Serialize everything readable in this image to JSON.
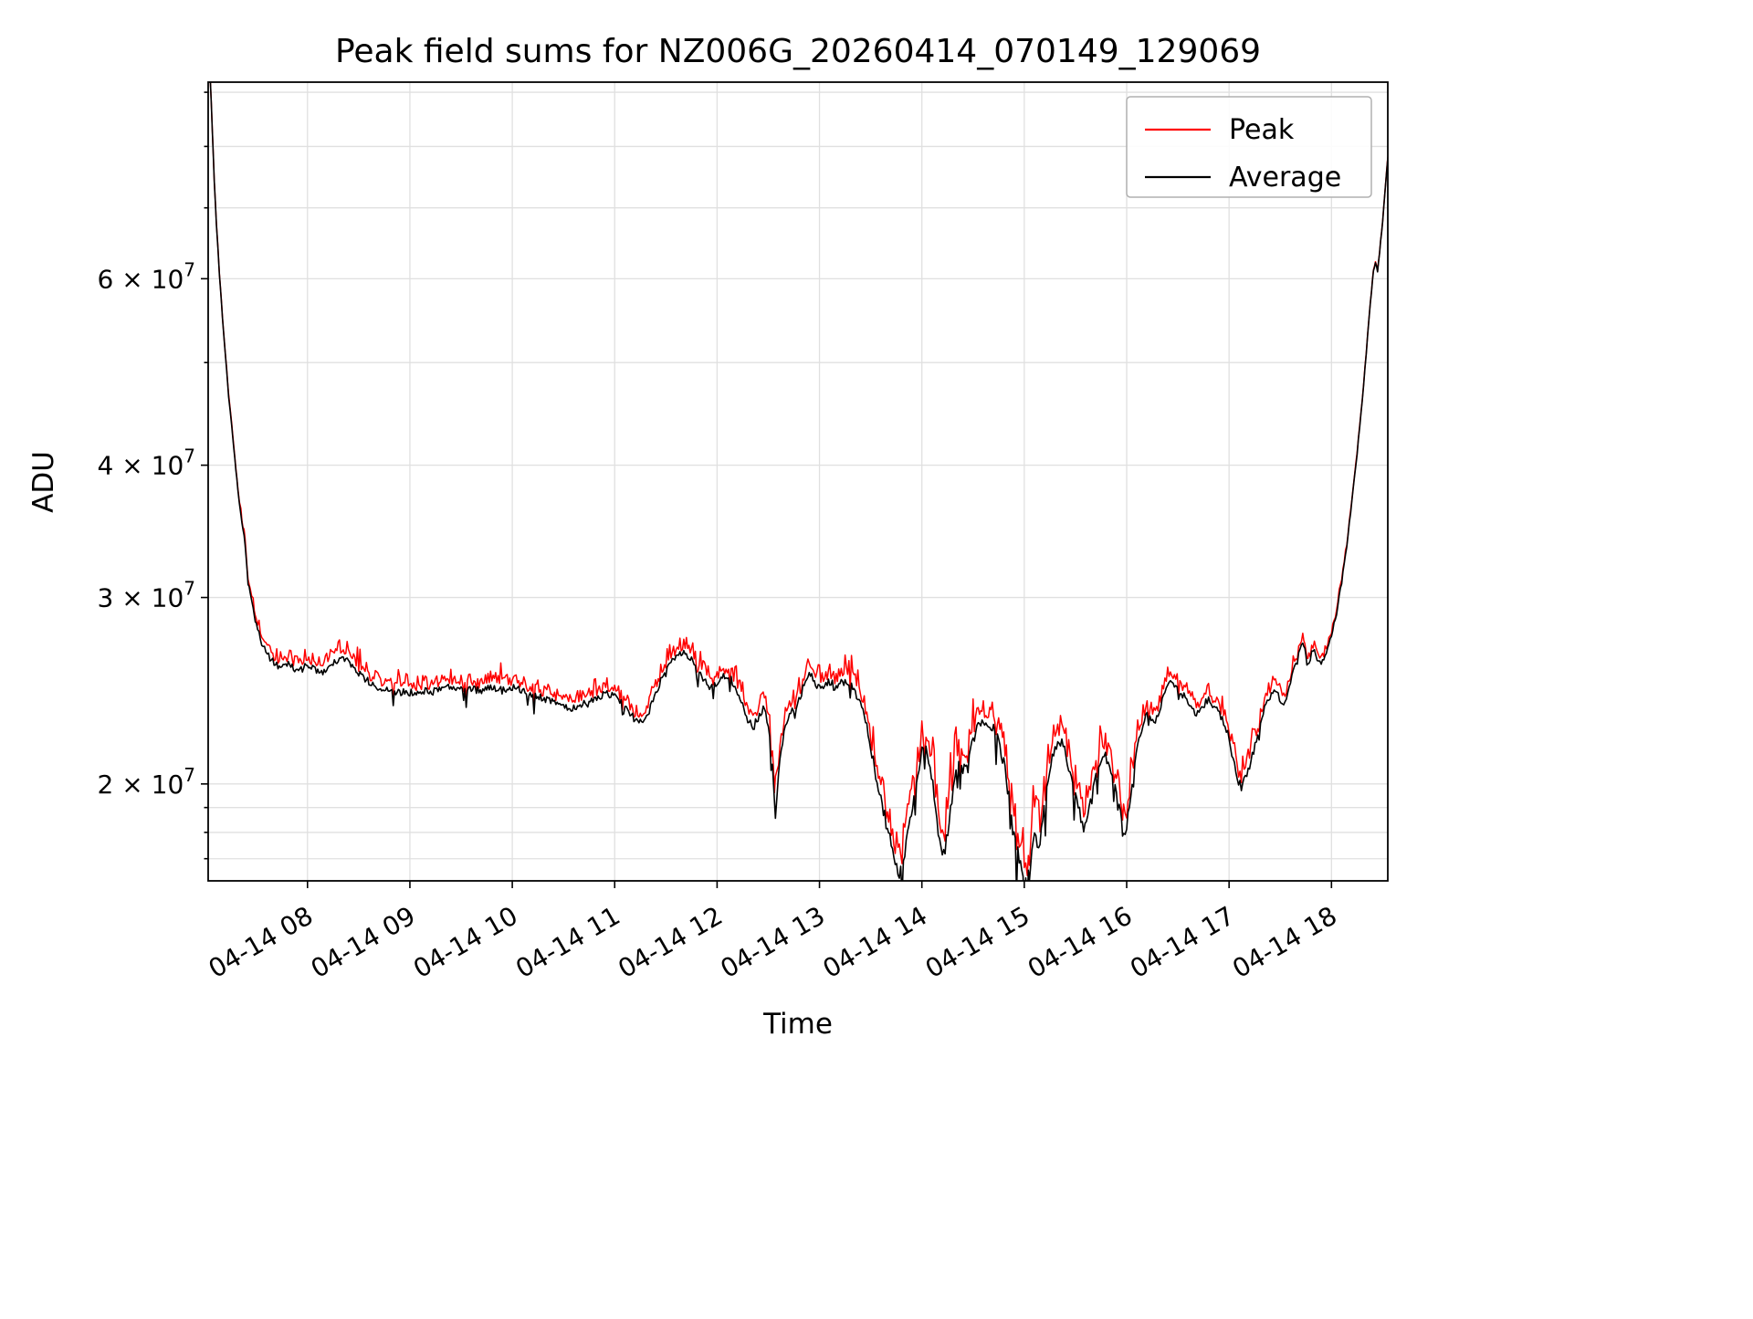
{
  "chart_data": {
    "type": "line",
    "title": "Peak field sums for NZ006G_20260414_070149_129069",
    "xlabel": "Time",
    "ylabel": "ADU",
    "yscale": "log",
    "grid": true,
    "legend_position": "upper right",
    "value_unit": 10000000,
    "ylim": [
      16200000,
      92000000
    ],
    "xlim_hours": [
      7.03,
      18.55
    ],
    "x_ticks": [
      {
        "hour": 8,
        "label": "04-14 08"
      },
      {
        "hour": 9,
        "label": "04-14 09"
      },
      {
        "hour": 10,
        "label": "04-14 10"
      },
      {
        "hour": 11,
        "label": "04-14 11"
      },
      {
        "hour": 12,
        "label": "04-14 12"
      },
      {
        "hour": 13,
        "label": "04-14 13"
      },
      {
        "hour": 14,
        "label": "04-14 14"
      },
      {
        "hour": 15,
        "label": "04-14 15"
      },
      {
        "hour": 16,
        "label": "04-14 16"
      },
      {
        "hour": 17,
        "label": "04-14 17"
      },
      {
        "hour": 18,
        "label": "04-14 18"
      }
    ],
    "y_ticks": [
      {
        "value": 20000000,
        "label": "2 × 10^7"
      },
      {
        "value": 30000000,
        "label": "3 × 10^7"
      },
      {
        "value": 40000000,
        "label": "4 × 10^7"
      },
      {
        "value": 60000000,
        "label": "6 × 10^7"
      }
    ],
    "y_minor": [
      17000000,
      18000000,
      19000000,
      50000000,
      70000000,
      80000000,
      90000000
    ],
    "texture": {
      "seed": 129069,
      "substep_hours": 0.012
    },
    "x_hours": [
      7.05,
      7.07,
      7.09,
      7.11,
      7.14,
      7.17,
      7.2,
      7.23,
      7.26,
      7.29,
      7.32,
      7.35,
      7.37,
      7.39,
      7.41,
      7.44,
      7.47,
      7.5,
      7.54,
      7.58,
      7.62,
      7.66,
      7.7,
      7.75,
      7.8,
      7.85,
      7.9,
      7.95,
      8.0,
      8.05,
      8.1,
      8.15,
      8.2,
      8.25,
      8.3,
      8.35,
      8.4,
      8.45,
      8.5,
      8.55,
      8.6,
      8.65,
      8.7,
      8.75,
      8.8,
      8.85,
      8.9,
      8.95,
      9.0,
      9.05,
      9.1,
      9.15,
      9.2,
      9.25,
      9.3,
      9.35,
      9.4,
      9.45,
      9.5,
      9.55,
      9.6,
      9.65,
      9.7,
      9.75,
      9.8,
      9.85,
      9.9,
      9.95,
      10.0,
      10.05,
      10.1,
      10.15,
      10.2,
      10.25,
      10.3,
      10.35,
      10.4,
      10.45,
      10.5,
      10.55,
      10.6,
      10.65,
      10.7,
      10.75,
      10.8,
      10.85,
      10.9,
      10.95,
      11.0,
      11.05,
      11.1,
      11.15,
      11.2,
      11.25,
      11.3,
      11.35,
      11.4,
      11.45,
      11.5,
      11.55,
      11.6,
      11.65,
      11.7,
      11.75,
      11.8,
      11.85,
      11.9,
      11.95,
      12.0,
      12.05,
      12.1,
      12.15,
      12.2,
      12.25,
      12.3,
      12.35,
      12.4,
      12.45,
      12.5,
      12.54,
      12.57,
      12.6,
      12.64,
      12.68,
      12.72,
      12.76,
      12.8,
      12.85,
      12.9,
      12.95,
      13.0,
      13.05,
      13.1,
      13.15,
      13.2,
      13.25,
      13.3,
      13.35,
      13.4,
      13.45,
      13.5,
      13.55,
      13.6,
      13.65,
      13.7,
      13.74,
      13.78,
      13.82,
      13.86,
      13.91,
      13.96,
      14.0,
      14.04,
      14.08,
      14.12,
      14.16,
      14.2,
      14.24,
      14.28,
      14.32,
      14.36,
      14.4,
      14.45,
      14.5,
      14.55,
      14.6,
      14.65,
      14.7,
      14.75,
      14.8,
      14.85,
      14.9,
      14.95,
      15.0,
      15.03,
      15.06,
      15.1,
      15.14,
      15.18,
      15.22,
      15.26,
      15.3,
      15.34,
      15.38,
      15.42,
      15.46,
      15.5,
      15.54,
      15.58,
      15.62,
      15.66,
      15.7,
      15.74,
      15.78,
      15.82,
      15.86,
      15.9,
      15.94,
      15.97,
      16.0,
      16.04,
      16.08,
      16.12,
      16.16,
      16.2,
      16.24,
      16.28,
      16.32,
      16.36,
      16.4,
      16.44,
      16.48,
      16.52,
      16.56,
      16.6,
      16.64,
      16.68,
      16.72,
      16.76,
      16.8,
      16.84,
      16.88,
      16.92,
      16.96,
      17.0,
      17.04,
      17.08,
      17.12,
      17.16,
      17.2,
      17.24,
      17.28,
      17.32,
      17.36,
      17.4,
      17.44,
      17.48,
      17.52,
      17.56,
      17.6,
      17.64,
      17.68,
      17.72,
      17.75,
      17.78,
      17.82,
      17.86,
      17.9,
      17.95,
      18.0,
      18.05,
      18.1,
      18.15,
      18.2,
      18.25,
      18.3,
      18.34,
      18.38,
      18.41,
      18.43,
      18.45,
      18.47,
      18.5,
      18.53,
      18.55
    ],
    "series": [
      {
        "name": "Peak",
        "color": "#ff0000",
        "values": [
          9.32,
          8.32,
          7.42,
          6.77,
          6.07,
          5.52,
          5.08,
          4.68,
          4.38,
          4.08,
          3.84,
          3.63,
          3.54,
          3.44,
          3.24,
          3.08,
          2.99,
          2.91,
          2.82,
          2.77,
          2.73,
          2.7,
          2.69,
          2.67,
          2.7,
          2.68,
          2.65,
          2.67,
          2.69,
          2.67,
          2.66,
          2.66,
          2.68,
          2.72,
          2.74,
          2.75,
          2.72,
          2.69,
          2.65,
          2.62,
          2.6,
          2.58,
          2.57,
          2.56,
          2.55,
          2.54,
          2.54,
          2.55,
          2.54,
          2.52,
          2.53,
          2.54,
          2.53,
          2.54,
          2.56,
          2.57,
          2.57,
          2.56,
          2.57,
          2.56,
          2.55,
          2.56,
          2.55,
          2.56,
          2.57,
          2.56,
          2.55,
          2.56,
          2.57,
          2.56,
          2.55,
          2.53,
          2.52,
          2.51,
          2.5,
          2.49,
          2.48,
          2.46,
          2.45,
          2.44,
          2.44,
          2.46,
          2.47,
          2.49,
          2.51,
          2.52,
          2.53,
          2.52,
          2.51,
          2.48,
          2.44,
          2.41,
          2.38,
          2.37,
          2.39,
          2.45,
          2.52,
          2.6,
          2.66,
          2.71,
          2.74,
          2.76,
          2.75,
          2.72,
          2.68,
          2.63,
          2.6,
          2.58,
          2.6,
          2.63,
          2.64,
          2.61,
          2.56,
          2.49,
          2.42,
          2.38,
          2.43,
          2.48,
          2.4,
          2.21,
          1.99,
          2.19,
          2.32,
          2.41,
          2.47,
          2.43,
          2.52,
          2.6,
          2.66,
          2.62,
          2.58,
          2.6,
          2.62,
          2.59,
          2.62,
          2.64,
          2.6,
          2.57,
          2.52,
          2.43,
          2.31,
          2.19,
          2.09,
          1.99,
          1.92,
          1.84,
          1.79,
          1.83,
          1.93,
          2.08,
          2.22,
          2.3,
          2.33,
          2.26,
          2.13,
          1.98,
          1.89,
          1.94,
          2.08,
          2.19,
          2.25,
          2.2,
          2.28,
          2.36,
          2.42,
          2.45,
          2.43,
          2.41,
          2.35,
          2.26,
          2.13,
          1.99,
          1.89,
          1.83,
          1.8,
          1.88,
          1.99,
          1.93,
          2.04,
          2.17,
          2.26,
          2.33,
          2.36,
          2.32,
          2.25,
          2.17,
          2.11,
          2.04,
          1.97,
          2.02,
          2.1,
          2.19,
          2.25,
          2.28,
          2.24,
          2.19,
          2.13,
          2.03,
          1.92,
          1.96,
          2.09,
          2.22,
          2.32,
          2.39,
          2.43,
          2.4,
          2.38,
          2.45,
          2.52,
          2.57,
          2.59,
          2.57,
          2.54,
          2.52,
          2.48,
          2.45,
          2.42,
          2.45,
          2.48,
          2.5,
          2.48,
          2.46,
          2.43,
          2.4,
          2.32,
          2.23,
          2.15,
          2.11,
          2.15,
          2.2,
          2.27,
          2.33,
          2.41,
          2.48,
          2.52,
          2.55,
          2.52,
          2.48,
          2.51,
          2.59,
          2.66,
          2.73,
          2.79,
          2.73,
          2.68,
          2.74,
          2.69,
          2.65,
          2.71,
          2.81,
          2.94,
          3.14,
          3.38,
          3.73,
          4.13,
          4.62,
          5.12,
          5.72,
          6.12,
          6.24,
          6.12,
          6.37,
          6.82,
          7.42,
          7.82
        ]
      },
      {
        "name": "Average",
        "color": "#000000",
        "values": [
          9.3,
          8.3,
          7.4,
          6.75,
          6.05,
          5.5,
          5.05,
          4.65,
          4.35,
          4.05,
          3.8,
          3.58,
          3.48,
          3.38,
          3.18,
          3.02,
          2.92,
          2.83,
          2.74,
          2.68,
          2.64,
          2.61,
          2.59,
          2.57,
          2.6,
          2.58,
          2.55,
          2.57,
          2.59,
          2.57,
          2.56,
          2.55,
          2.57,
          2.6,
          2.62,
          2.63,
          2.61,
          2.58,
          2.55,
          2.52,
          2.5,
          2.48,
          2.47,
          2.46,
          2.45,
          2.44,
          2.44,
          2.45,
          2.44,
          2.43,
          2.44,
          2.45,
          2.44,
          2.45,
          2.46,
          2.47,
          2.47,
          2.46,
          2.47,
          2.46,
          2.45,
          2.46,
          2.45,
          2.46,
          2.47,
          2.46,
          2.45,
          2.46,
          2.47,
          2.46,
          2.45,
          2.44,
          2.43,
          2.42,
          2.41,
          2.4,
          2.39,
          2.38,
          2.37,
          2.36,
          2.36,
          2.37,
          2.38,
          2.4,
          2.41,
          2.42,
          2.43,
          2.43,
          2.42,
          2.4,
          2.36,
          2.33,
          2.3,
          2.29,
          2.31,
          2.36,
          2.43,
          2.5,
          2.56,
          2.61,
          2.64,
          2.66,
          2.65,
          2.62,
          2.57,
          2.52,
          2.49,
          2.47,
          2.49,
          2.52,
          2.53,
          2.5,
          2.44,
          2.37,
          2.3,
          2.26,
          2.31,
          2.36,
          2.28,
          2.08,
          1.86,
          2.06,
          2.2,
          2.29,
          2.35,
          2.31,
          2.4,
          2.48,
          2.54,
          2.5,
          2.46,
          2.48,
          2.5,
          2.47,
          2.5,
          2.52,
          2.48,
          2.44,
          2.39,
          2.29,
          2.17,
          2.04,
          1.94,
          1.84,
          1.77,
          1.69,
          1.64,
          1.68,
          1.78,
          1.92,
          2.06,
          2.14,
          2.17,
          2.09,
          1.95,
          1.8,
          1.71,
          1.76,
          1.9,
          2.02,
          2.09,
          2.04,
          2.12,
          2.2,
          2.27,
          2.3,
          2.28,
          2.25,
          2.19,
          2.09,
          1.95,
          1.81,
          1.7,
          1.63,
          1.6,
          1.68,
          1.79,
          1.73,
          1.85,
          1.99,
          2.09,
          2.17,
          2.21,
          2.17,
          2.1,
          2.02,
          1.95,
          1.88,
          1.81,
          1.86,
          1.95,
          2.04,
          2.11,
          2.14,
          2.1,
          2.05,
          1.98,
          1.88,
          1.77,
          1.82,
          1.96,
          2.1,
          2.2,
          2.28,
          2.32,
          2.3,
          2.28,
          2.35,
          2.42,
          2.48,
          2.5,
          2.48,
          2.45,
          2.42,
          2.38,
          2.35,
          2.32,
          2.35,
          2.38,
          2.4,
          2.38,
          2.35,
          2.32,
          2.28,
          2.2,
          2.1,
          2.02,
          1.98,
          2.02,
          2.08,
          2.15,
          2.22,
          2.3,
          2.38,
          2.42,
          2.45,
          2.42,
          2.38,
          2.42,
          2.5,
          2.58,
          2.65,
          2.72,
          2.66,
          2.61,
          2.68,
          2.63,
          2.59,
          2.66,
          2.76,
          2.9,
          3.1,
          3.35,
          3.7,
          4.1,
          4.6,
          5.1,
          5.7,
          6.1,
          6.22,
          6.1,
          6.35,
          6.8,
          7.4,
          7.8
        ]
      }
    ]
  }
}
